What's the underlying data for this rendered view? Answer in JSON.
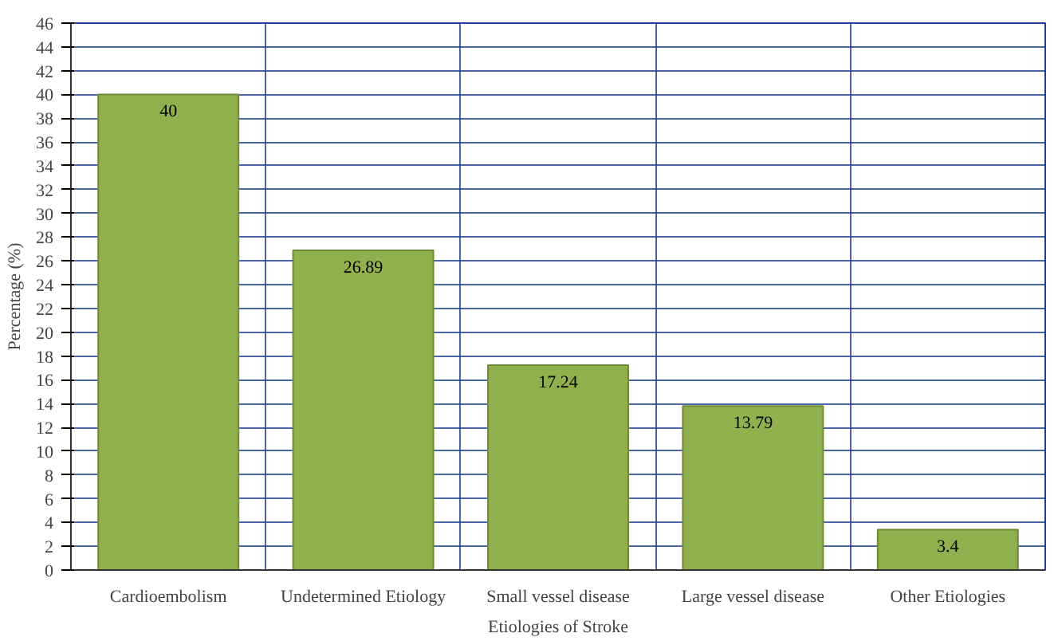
{
  "chart_data": {
    "type": "bar",
    "xlabel": "Etiologies of Stroke",
    "ylabel": "Percentage (%)",
    "categories": [
      "Cardioembolism",
      "Undetermined Etiology",
      "Small vessel disease",
      "Large vessel disease",
      "Other Etiologies"
    ],
    "values": [
      40,
      26.89,
      17.24,
      13.79,
      3.4
    ],
    "color": "#8fb04c",
    "ylim": [
      0,
      46
    ],
    "yticks": [
      0,
      2,
      4,
      6,
      8,
      10,
      12,
      14,
      16,
      18,
      20,
      22,
      24,
      26,
      28,
      30,
      32,
      34,
      36,
      38,
      40,
      42,
      44,
      46
    ],
    "grid": true,
    "data_labels": true
  }
}
